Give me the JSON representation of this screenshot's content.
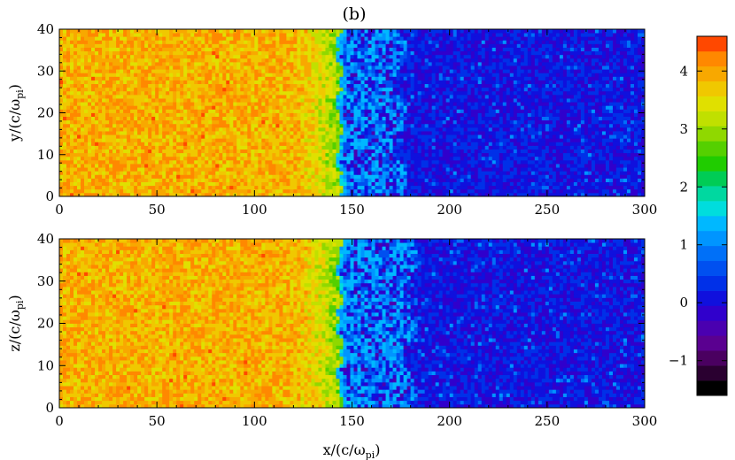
{
  "chart_data": {
    "type": "heatmap",
    "title": "(b)",
    "panels": [
      {
        "id": "top",
        "ylabel": {
          "main": "y/(c/ω",
          "sub": "pi",
          "close": ")"
        },
        "xlim": [
          0,
          300
        ],
        "ylim": [
          0,
          40
        ],
        "xticks": [
          0,
          50,
          100,
          150,
          200,
          250,
          300
        ],
        "yticks": [
          0,
          10,
          20,
          30,
          40
        ],
        "upstream_value": 3.9,
        "downstream_value": 0.1,
        "shock_x": 146,
        "transition_start_x": 110,
        "turbulent_region_x": [
          146,
          175
        ]
      },
      {
        "id": "bottom",
        "ylabel": {
          "main": "z/(c/ω",
          "sub": "pi",
          "close": ")"
        },
        "xlim": [
          0,
          300
        ],
        "ylim": [
          0,
          40
        ],
        "xticks": [
          0,
          50,
          100,
          150,
          200,
          250,
          300
        ],
        "yticks": [
          0,
          10,
          20,
          30,
          40
        ],
        "upstream_value": 3.9,
        "downstream_value": 0.1,
        "shock_x": 146,
        "transition_start_x": 110,
        "turbulent_region_x": [
          146,
          180
        ]
      }
    ],
    "xlabel": {
      "main": "x/(c/ω",
      "sub": "pi",
      "close": ")"
    },
    "colorbar": {
      "range": [
        -1.6,
        4.6
      ],
      "ticks": [
        -1,
        0,
        1,
        2,
        3,
        4
      ],
      "levels": 24,
      "colors": [
        "#000000",
        "#2a0030",
        "#4a0060",
        "#5a0090",
        "#4a00b0",
        "#3000cc",
        "#1010dd",
        "#0030e8",
        "#0050f0",
        "#0070f8",
        "#0095ff",
        "#00b8ff",
        "#00dddd",
        "#00d8a0",
        "#00cc55",
        "#20cc00",
        "#55d000",
        "#90d800",
        "#c0e000",
        "#e0e000",
        "#f0c800",
        "#f8a800",
        "#ff8800",
        "#ff4800"
      ]
    }
  }
}
